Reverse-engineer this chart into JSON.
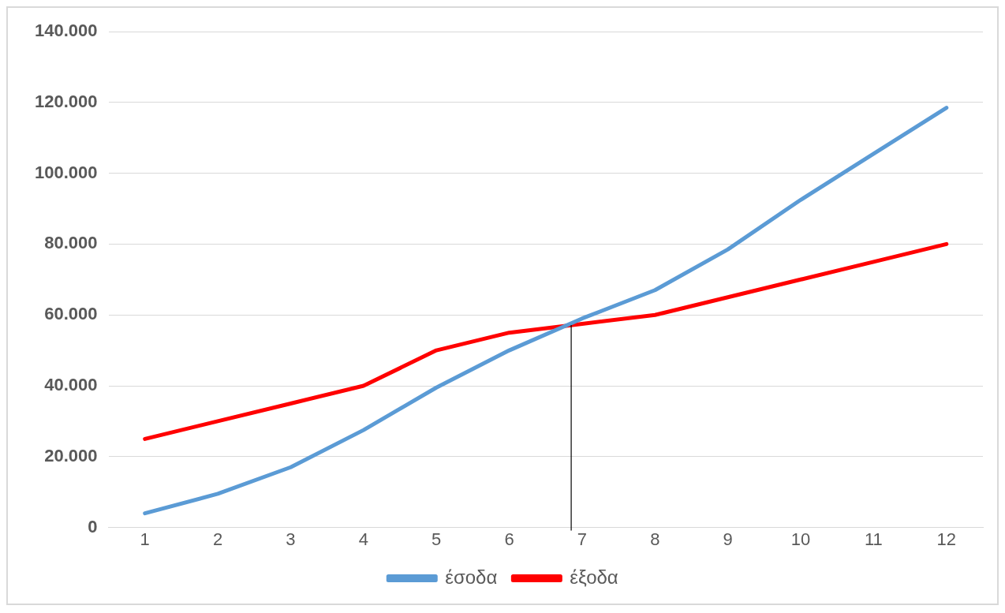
{
  "chart_data": {
    "type": "line",
    "x": [
      1,
      2,
      3,
      4,
      5,
      6,
      7,
      8,
      9,
      10,
      11,
      12
    ],
    "xlim": [
      0.5,
      12.5
    ],
    "xticks": [
      1,
      2,
      3,
      4,
      5,
      6,
      7,
      8,
      9,
      10,
      11,
      12
    ],
    "ylim": [
      0,
      140000
    ],
    "yticks": [
      {
        "value": 0,
        "label": "0"
      },
      {
        "value": 20000,
        "label": "20.000"
      },
      {
        "value": 40000,
        "label": "40.000"
      },
      {
        "value": 60000,
        "label": "60.000"
      },
      {
        "value": 80000,
        "label": "80.000"
      },
      {
        "value": 100000,
        "label": "100.000"
      },
      {
        "value": 120000,
        "label": "120.000"
      },
      {
        "value": 140000,
        "label": "140.000"
      }
    ],
    "series": [
      {
        "name": "έσοδα",
        "color": "#5b9bd5",
        "values": [
          4000,
          9500,
          17000,
          27500,
          39500,
          50000,
          59000,
          67000,
          78500,
          92500,
          105500,
          118500
        ]
      },
      {
        "name": "έξοδα",
        "color": "#ff0000",
        "values": [
          25000,
          30000,
          35000,
          40000,
          50000,
          55000,
          57500,
          60000,
          65000,
          70000,
          75000,
          80000
        ]
      }
    ],
    "ref_lines": [
      {
        "axis": "x",
        "value": 6.85,
        "color": "#000000"
      }
    ],
    "grid": "y",
    "legend": "bottom",
    "marker": "none",
    "line_style": "solid"
  }
}
